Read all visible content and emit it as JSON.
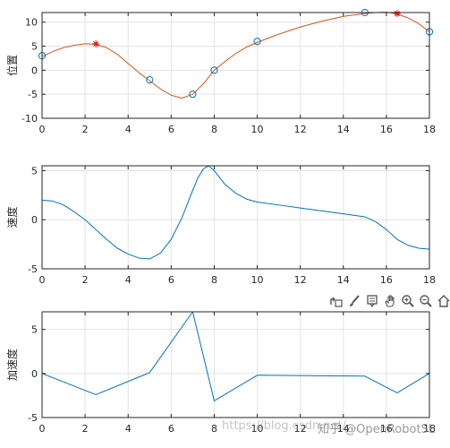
{
  "chart_data": [
    {
      "type": "line",
      "ylabel": "位置",
      "xlim": [
        0,
        18
      ],
      "ylim": [
        -10,
        12
      ],
      "xticks": [
        0,
        2,
        4,
        6,
        8,
        10,
        12,
        14,
        16,
        18
      ],
      "yticks": [
        -10,
        -5,
        0,
        5,
        10
      ],
      "grid": true,
      "series": [
        {
          "style": "line",
          "color": "#d95319",
          "x": [
            0,
            0.5,
            1,
            1.5,
            2,
            2.5,
            3,
            3.5,
            4,
            4.5,
            5,
            5.5,
            6,
            6.5,
            7,
            7.5,
            8,
            8.5,
            9,
            9.5,
            10,
            11,
            12,
            13,
            14,
            15,
            15.5,
            16,
            16.5,
            17,
            17.5,
            18
          ],
          "y": [
            2.8,
            3.9,
            4.7,
            5.2,
            5.5,
            5.4,
            4.7,
            3.3,
            1.4,
            -0.5,
            -2.2,
            -3.9,
            -5.2,
            -5.8,
            -5.0,
            -2.8,
            0.0,
            1.8,
            3.5,
            4.8,
            5.8,
            7.5,
            9.0,
            10.2,
            11.2,
            11.8,
            12.0,
            12.1,
            11.7,
            10.9,
            9.7,
            8.0
          ]
        },
        {
          "style": "markers",
          "marker": "circle",
          "color": "#0072bd",
          "x": [
            0,
            5,
            7,
            8,
            10,
            15,
            18
          ],
          "y": [
            3,
            -2,
            -5,
            0,
            6,
            12,
            8
          ]
        },
        {
          "style": "markers",
          "marker": "star",
          "color": "#ff0000",
          "x": [
            2.5,
            16.5
          ],
          "y": [
            5.5,
            11.8
          ]
        }
      ]
    },
    {
      "type": "line",
      "ylabel": "速度",
      "xlim": [
        0,
        18
      ],
      "ylim": [
        -5,
        5.5
      ],
      "xticks": [
        0,
        2,
        4,
        6,
        8,
        10,
        12,
        14,
        16,
        18
      ],
      "yticks": [
        -5,
        0,
        5
      ],
      "grid": true,
      "series": [
        {
          "style": "line",
          "color": "#0072bd",
          "x": [
            0,
            0.5,
            1,
            1.5,
            2,
            2.5,
            3,
            3.5,
            4,
            4.5,
            5,
            5.5,
            6,
            6.5,
            7,
            7.25,
            7.5,
            7.75,
            8,
            8.5,
            9,
            9.5,
            10,
            11,
            12,
            13,
            14,
            15,
            15.5,
            16,
            16.5,
            17,
            17.5,
            18
          ],
          "y": [
            2.0,
            1.9,
            1.5,
            0.8,
            0.0,
            -1.0,
            -2.0,
            -2.9,
            -3.5,
            -3.9,
            -4.0,
            -3.4,
            -2.0,
            0.2,
            3.0,
            4.3,
            5.2,
            5.5,
            5.0,
            3.6,
            2.7,
            2.1,
            1.8,
            1.5,
            1.2,
            0.9,
            0.6,
            0.3,
            -0.2,
            -1.0,
            -2.0,
            -2.6,
            -2.9,
            -3.0
          ]
        }
      ]
    },
    {
      "type": "line",
      "ylabel": "加速度",
      "xlim": [
        0,
        18
      ],
      "ylim": [
        -5,
        7
      ],
      "xticks": [
        0,
        2,
        4,
        6,
        8,
        10,
        12,
        14,
        16,
        18
      ],
      "yticks": [
        -5,
        0,
        5
      ],
      "grid": true,
      "series": [
        {
          "style": "line",
          "color": "#0072bd",
          "x": [
            0,
            2.5,
            5,
            7,
            8,
            10,
            15,
            16.5,
            18
          ],
          "y": [
            0,
            -2.4,
            0.1,
            7,
            -3.1,
            -0.2,
            -0.3,
            -2.2,
            0
          ]
        }
      ]
    }
  ],
  "toolbar": {
    "icons": [
      "export-icon",
      "brush-icon",
      "data-tips-icon",
      "pan-hand-icon",
      "zoom-in-icon",
      "zoom-out-icon",
      "home-icon"
    ]
  },
  "watermark": {
    "blog": "https://blog.csdn.net/...",
    "brand": "知乎 @OpenRobotSL"
  }
}
